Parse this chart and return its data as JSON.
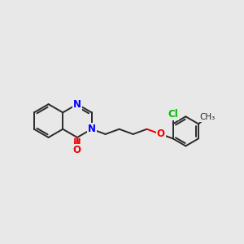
{
  "background_color": "#e8e8e8",
  "bond_color": "#2a2a2a",
  "N_color": "#0000ff",
  "O_color": "#ee0000",
  "Cl_color": "#00bb00",
  "bond_width": 1.4,
  "figsize": [
    3.0,
    3.0
  ],
  "dpi": 100,
  "xlim": [
    0,
    10
  ],
  "ylim": [
    2,
    8
  ]
}
